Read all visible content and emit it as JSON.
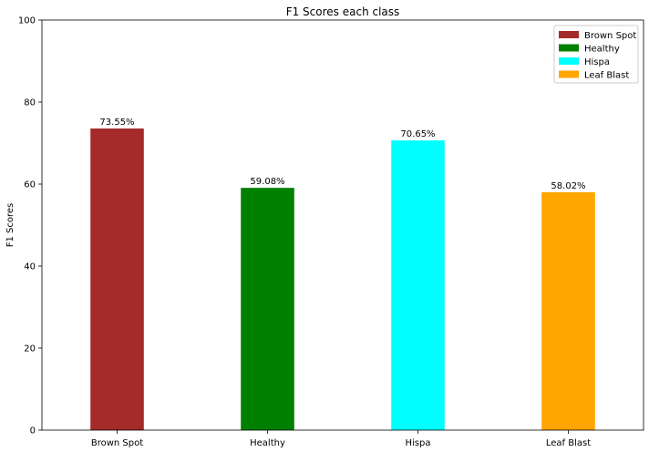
{
  "chart_data": {
    "type": "bar",
    "title": "F1 Scores each class",
    "xlabel": "",
    "ylabel": "F1 Scores",
    "ylim": [
      0,
      100
    ],
    "yticks": [
      0,
      20,
      40,
      60,
      80,
      100
    ],
    "categories": [
      "Brown Spot",
      "Healthy",
      "Hispa",
      "Leaf Blast"
    ],
    "values": [
      73.55,
      59.08,
      70.65,
      58.02
    ],
    "bar_labels": [
      "73.55%",
      "59.08%",
      "70.65%",
      "58.02%"
    ],
    "colors": [
      "#a52a2a",
      "#008000",
      "#00ffff",
      "#ffa500"
    ],
    "legend": {
      "placement": "top-right",
      "entries": [
        "Brown Spot",
        "Healthy",
        "Hispa",
        "Leaf Blast"
      ]
    },
    "grid": false
  }
}
